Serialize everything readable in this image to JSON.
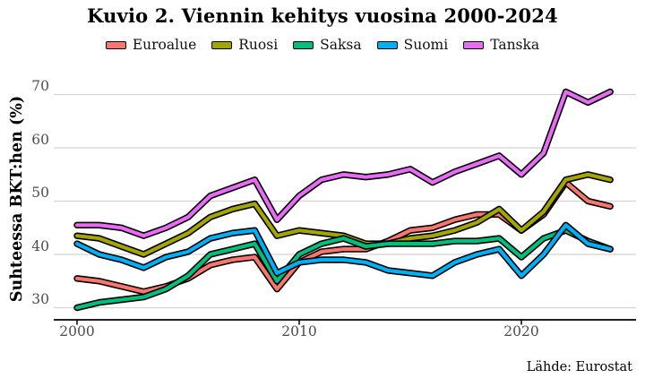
{
  "header": {
    "title": "Kuvio 2. Viennin kehitys vuosina 2000-2024"
  },
  "caption": "Lähde: Eurostat",
  "chart_data": {
    "type": "line",
    "title": "Kuvio 2. Viennin kehitys vuosina 2000-2024",
    "ylabel": "Suhteessa BKT:hen (%)",
    "xlabel": "",
    "caption": "Lähde: Eurostat",
    "x": [
      2000,
      2001,
      2002,
      2003,
      2004,
      2005,
      2006,
      2007,
      2008,
      2009,
      2010,
      2011,
      2012,
      2013,
      2014,
      2015,
      2016,
      2017,
      2018,
      2019,
      2020,
      2021,
      2022,
      2023,
      2024
    ],
    "series": [
      {
        "name": "Euroalue",
        "color": "#F8766D",
        "values": [
          35.5,
          35,
          34,
          33,
          34,
          35.5,
          38,
          39,
          39.5,
          33.5,
          38.5,
          40.5,
          41,
          41,
          42.5,
          44.5,
          45,
          46.5,
          47.5,
          47.5,
          44.5,
          47.5,
          53.5,
          50,
          49
        ]
      },
      {
        "name": "Ruosi",
        "color": "#A3A500",
        "values": [
          43.5,
          43,
          41.5,
          40,
          42,
          44,
          47,
          48.5,
          49.5,
          43.5,
          44.5,
          44,
          43.5,
          42,
          42,
          43,
          43.5,
          44.5,
          46,
          48.5,
          44.5,
          48,
          54,
          55,
          54
        ]
      },
      {
        "name": "Saksa",
        "color": "#00BF7D",
        "values": [
          30,
          31,
          31.5,
          32,
          33.5,
          36,
          40,
          41,
          42,
          35,
          40,
          42,
          43,
          41.5,
          42,
          42,
          42,
          42.5,
          42.5,
          43,
          39.5,
          43,
          44.5,
          42.5,
          41
        ]
      },
      {
        "name": "Suomi",
        "color": "#00B0F6",
        "values": [
          42,
          40,
          39,
          37.5,
          39.5,
          40.5,
          43,
          44,
          44.5,
          36.5,
          38.5,
          39,
          39,
          38.5,
          37,
          36.5,
          36,
          38.5,
          40,
          41,
          36,
          40,
          45.5,
          42,
          41
        ]
      },
      {
        "name": "Tanska",
        "color": "#E76BF3",
        "values": [
          45.5,
          45.5,
          45,
          43.5,
          45,
          47,
          51,
          52.5,
          54,
          46.5,
          51,
          54,
          55,
          54.5,
          55,
          56,
          53.5,
          55.5,
          57,
          58.5,
          55,
          59,
          70.5,
          68.5,
          70.5
        ]
      }
    ],
    "yticks": [
      70,
      60,
      50,
      40,
      30
    ],
    "xticks": [
      2000,
      2010,
      2020
    ],
    "ylim": [
      27,
      73
    ],
    "xlim": [
      2000,
      2024
    ],
    "grid": "horizontal-only",
    "gridline_color": "#d4d4d4",
    "line_outline_color": "#000000",
    "axis_color": "#000000",
    "tick_label_color": "#4d4d4d",
    "background": "#ffffff",
    "legend_position": "top"
  }
}
